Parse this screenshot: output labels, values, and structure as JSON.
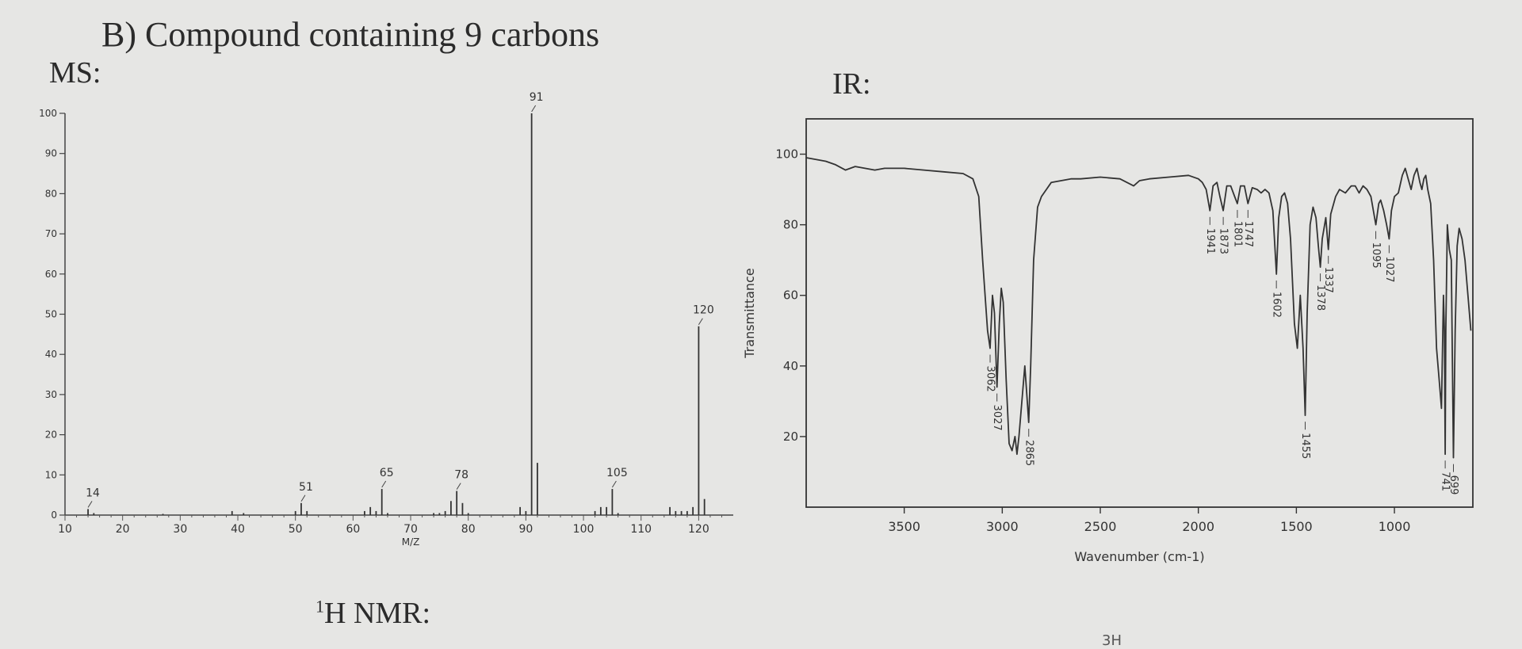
{
  "heading": "B) Compound containing 9 carbons",
  "ms_label": "MS:",
  "ir_label": "IR:",
  "nmr_label_sup": "1",
  "nmr_label": "H NMR:",
  "stray_text": "3H",
  "chart_data": [
    {
      "type": "bar",
      "xlabel": "M/Z",
      "ylabel": "",
      "xlim": [
        10,
        126
      ],
      "ylim": [
        0,
        100
      ],
      "xticks": [
        10,
        20,
        30,
        40,
        50,
        60,
        70,
        80,
        90,
        100,
        110,
        120
      ],
      "yticks": [
        0,
        10,
        20,
        30,
        40,
        50,
        60,
        70,
        80,
        90,
        100
      ],
      "peaks": [
        {
          "x": 14,
          "y": 1.5
        },
        {
          "x": 15,
          "y": 0.5
        },
        {
          "x": 27,
          "y": 0.3
        },
        {
          "x": 39,
          "y": 1
        },
        {
          "x": 41,
          "y": 0.5
        },
        {
          "x": 50,
          "y": 1
        },
        {
          "x": 51,
          "y": 3
        },
        {
          "x": 52,
          "y": 1
        },
        {
          "x": 62,
          "y": 1
        },
        {
          "x": 63,
          "y": 2
        },
        {
          "x": 64,
          "y": 1
        },
        {
          "x": 65,
          "y": 6.5
        },
        {
          "x": 66,
          "y": 0.5
        },
        {
          "x": 74,
          "y": 0.5
        },
        {
          "x": 75,
          "y": 0.5
        },
        {
          "x": 76,
          "y": 1
        },
        {
          "x": 77,
          "y": 3.5
        },
        {
          "x": 78,
          "y": 6
        },
        {
          "x": 79,
          "y": 3
        },
        {
          "x": 80,
          "y": 0.5
        },
        {
          "x": 89,
          "y": 2
        },
        {
          "x": 90,
          "y": 1
        },
        {
          "x": 91,
          "y": 100
        },
        {
          "x": 92,
          "y": 13
        },
        {
          "x": 102,
          "y": 1
        },
        {
          "x": 103,
          "y": 2
        },
        {
          "x": 104,
          "y": 2
        },
        {
          "x": 105,
          "y": 6.5
        },
        {
          "x": 106,
          "y": 0.5
        },
        {
          "x": 115,
          "y": 2
        },
        {
          "x": 116,
          "y": 1
        },
        {
          "x": 117,
          "y": 1
        },
        {
          "x": 118,
          "y": 1
        },
        {
          "x": 119,
          "y": 2
        },
        {
          "x": 120,
          "y": 47
        },
        {
          "x": 121,
          "y": 4
        }
      ],
      "peak_labels": [
        {
          "x": 14,
          "y": 1.5,
          "text": "14"
        },
        {
          "x": 51,
          "y": 3,
          "text": "51"
        },
        {
          "x": 65,
          "y": 6.5,
          "text": "65"
        },
        {
          "x": 78,
          "y": 6,
          "text": "78"
        },
        {
          "x": 91,
          "y": 100,
          "text": "91"
        },
        {
          "x": 105,
          "y": 6.5,
          "text": "105"
        },
        {
          "x": 120,
          "y": 47,
          "text": "120"
        }
      ]
    },
    {
      "type": "line",
      "xlabel": "Wavenumber (cm-1)",
      "ylabel": "Transmittance",
      "xlim": [
        4000,
        600
      ],
      "ylim": [
        0,
        110
      ],
      "xticks": [
        3500,
        3000,
        2500,
        2000,
        1500,
        1000
      ],
      "yticks": [
        20,
        40,
        60,
        80,
        100
      ],
      "spectrum": [
        [
          4000,
          99
        ],
        [
          3950,
          98.5
        ],
        [
          3900,
          98
        ],
        [
          3850,
          97
        ],
        [
          3800,
          95.5
        ],
        [
          3750,
          96.5
        ],
        [
          3700,
          96
        ],
        [
          3650,
          95.5
        ],
        [
          3600,
          96
        ],
        [
          3500,
          96
        ],
        [
          3400,
          95.5
        ],
        [
          3300,
          95
        ],
        [
          3200,
          94.5
        ],
        [
          3150,
          93
        ],
        [
          3120,
          88
        ],
        [
          3100,
          70
        ],
        [
          3085,
          58
        ],
        [
          3075,
          50
        ],
        [
          3062,
          45
        ],
        [
          3050,
          60
        ],
        [
          3040,
          55
        ],
        [
          3027,
          34
        ],
        [
          3015,
          52
        ],
        [
          3005,
          62
        ],
        [
          2995,
          58
        ],
        [
          2980,
          36
        ],
        [
          2965,
          18
        ],
        [
          2950,
          16
        ],
        [
          2935,
          20
        ],
        [
          2925,
          15
        ],
        [
          2915,
          20
        ],
        [
          2900,
          30
        ],
        [
          2885,
          40
        ],
        [
          2875,
          32
        ],
        [
          2865,
          24
        ],
        [
          2855,
          40
        ],
        [
          2840,
          70
        ],
        [
          2820,
          85
        ],
        [
          2800,
          88
        ],
        [
          2775,
          90
        ],
        [
          2750,
          92
        ],
        [
          2700,
          92.5
        ],
        [
          2650,
          93
        ],
        [
          2600,
          93
        ],
        [
          2500,
          93.5
        ],
        [
          2400,
          93
        ],
        [
          2330,
          91
        ],
        [
          2300,
          92.5
        ],
        [
          2250,
          93
        ],
        [
          2150,
          93.5
        ],
        [
          2050,
          94
        ],
        [
          2000,
          93
        ],
        [
          1980,
          92
        ],
        [
          1960,
          90
        ],
        [
          1941,
          84
        ],
        [
          1925,
          91
        ],
        [
          1905,
          92
        ],
        [
          1890,
          88
        ],
        [
          1873,
          84
        ],
        [
          1855,
          91
        ],
        [
          1835,
          91
        ],
        [
          1815,
          88
        ],
        [
          1801,
          86
        ],
        [
          1785,
          91
        ],
        [
          1765,
          91
        ],
        [
          1747,
          86
        ],
        [
          1725,
          90.5
        ],
        [
          1700,
          90
        ],
        [
          1680,
          89
        ],
        [
          1660,
          90
        ],
        [
          1640,
          89
        ],
        [
          1620,
          84
        ],
        [
          1602,
          66
        ],
        [
          1590,
          82
        ],
        [
          1575,
          88
        ],
        [
          1560,
          89
        ],
        [
          1545,
          86
        ],
        [
          1530,
          76
        ],
        [
          1510,
          52
        ],
        [
          1495,
          45
        ],
        [
          1480,
          60
        ],
        [
          1466,
          45
        ],
        [
          1455,
          26
        ],
        [
          1445,
          55
        ],
        [
          1430,
          80
        ],
        [
          1415,
          85
        ],
        [
          1400,
          82
        ],
        [
          1388,
          74
        ],
        [
          1378,
          68
        ],
        [
          1368,
          76
        ],
        [
          1350,
          82
        ],
        [
          1337,
          73
        ],
        [
          1325,
          83
        ],
        [
          1300,
          88
        ],
        [
          1280,
          90
        ],
        [
          1250,
          89
        ],
        [
          1220,
          91
        ],
        [
          1200,
          91
        ],
        [
          1180,
          89
        ],
        [
          1160,
          91
        ],
        [
          1140,
          90
        ],
        [
          1120,
          88
        ],
        [
          1095,
          80
        ],
        [
          1080,
          86
        ],
        [
          1070,
          87
        ],
        [
          1055,
          84
        ],
        [
          1040,
          80
        ],
        [
          1027,
          76
        ],
        [
          1015,
          84
        ],
        [
          1000,
          88
        ],
        [
          980,
          89
        ],
        [
          960,
          94
        ],
        [
          945,
          96
        ],
        [
          930,
          93
        ],
        [
          915,
          90
        ],
        [
          900,
          94
        ],
        [
          885,
          96
        ],
        [
          870,
          92
        ],
        [
          860,
          90
        ],
        [
          850,
          93
        ],
        [
          840,
          94
        ],
        [
          830,
          90
        ],
        [
          815,
          86
        ],
        [
          800,
          70
        ],
        [
          785,
          45
        ],
        [
          770,
          35
        ],
        [
          760,
          28
        ],
        [
          750,
          60
        ],
        [
          745,
          50
        ],
        [
          741,
          15
        ],
        [
          738,
          50
        ],
        [
          730,
          80
        ],
        [
          720,
          73
        ],
        [
          710,
          70
        ],
        [
          699,
          14
        ],
        [
          690,
          50
        ],
        [
          680,
          74
        ],
        [
          670,
          79
        ],
        [
          655,
          76
        ],
        [
          640,
          70
        ],
        [
          625,
          60
        ],
        [
          610,
          50
        ]
      ],
      "annotations": [
        {
          "x": 3062,
          "text": "3062"
        },
        {
          "x": 3027,
          "text": "3027"
        },
        {
          "x": 2865,
          "text": "2865"
        },
        {
          "x": 1941,
          "text": "1941"
        },
        {
          "x": 1873,
          "text": "1873"
        },
        {
          "x": 1801,
          "text": "1801"
        },
        {
          "x": 1747,
          "text": "1747"
        },
        {
          "x": 1602,
          "text": "1602"
        },
        {
          "x": 1455,
          "text": "1455"
        },
        {
          "x": 1378,
          "text": "1378"
        },
        {
          "x": 1337,
          "text": "1337"
        },
        {
          "x": 1095,
          "text": "1095"
        },
        {
          "x": 1027,
          "text": "1027"
        },
        {
          "x": 741,
          "text": "741"
        },
        {
          "x": 699,
          "text": "699"
        }
      ]
    }
  ]
}
